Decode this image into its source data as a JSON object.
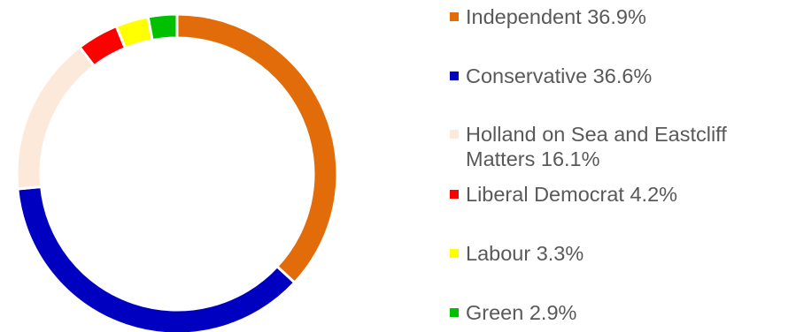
{
  "chart_data": {
    "type": "pie",
    "variant": "donut",
    "categories": [
      "Independent",
      "Conservative",
      "Holland on Sea and Eastcliff Matters",
      "Liberal Democrat",
      "Labour",
      "Green"
    ],
    "values": [
      36.9,
      36.6,
      16.1,
      4.2,
      3.3,
      2.9
    ],
    "colors": [
      "#E36C0A",
      "#0000C0",
      "#FDE9D9",
      "#FF0000",
      "#FFFF00",
      "#00C000"
    ],
    "legend_labels": [
      "Independent 36.9%",
      "Conservative 36.6%",
      "Holland on Sea and Eastcliff Matters 16.1%",
      "Liberal Democrat 4.2%",
      "Labour 3.3%",
      "Green 2.9%"
    ],
    "legend_position": "right"
  }
}
